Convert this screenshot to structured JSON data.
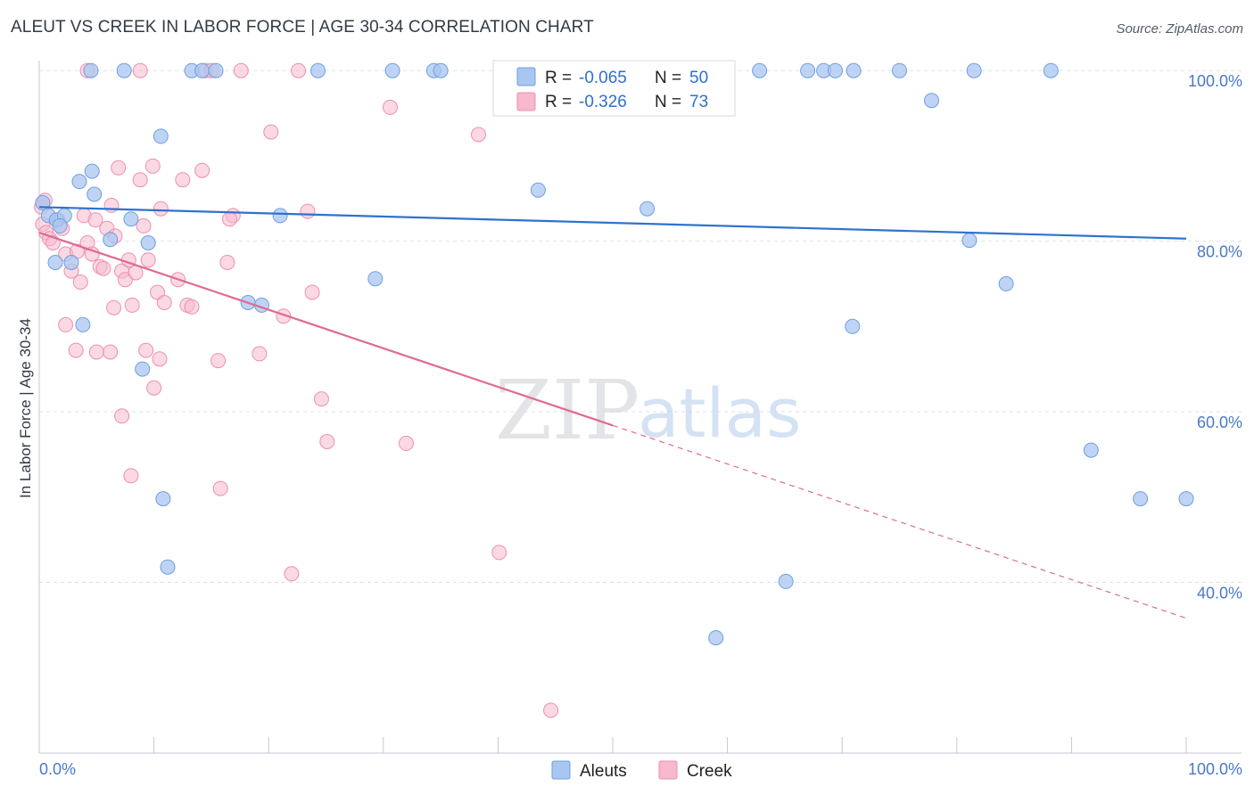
{
  "title": "ALEUT VS CREEK IN LABOR FORCE | AGE 30-34 CORRELATION CHART",
  "source": "Source: ZipAtlas.com",
  "watermark": {
    "zip": "ZIP",
    "atlas": "atlas"
  },
  "colors": {
    "aleut_fill": "#a9c6f0",
    "aleut_stroke": "#6f9fe0",
    "aleut_line": "#2f72cf",
    "creek_fill": "#f6b9cd",
    "creek_stroke": "#ee8fae",
    "creek_line": "#e06a93",
    "grid": "#dde1e8",
    "axis_label": "#4a78c8"
  },
  "legend": {
    "rows": [
      {
        "series": "aleuts",
        "r_label": "R =",
        "r_value": "-0.065",
        "n_label": "N =",
        "n_value": "50"
      },
      {
        "series": "creek",
        "r_label": "R =",
        "r_value": "-0.326",
        "n_label": "N =",
        "n_value": "73"
      }
    ]
  },
  "chart_data": {
    "type": "scatter",
    "title": "ALEUT VS CREEK IN LABOR FORCE | AGE 30-34 CORRELATION CHART",
    "xlabel": "",
    "ylabel": "In Labor Force | Age 30-34",
    "xlim": [
      0,
      100
    ],
    "ylim": [
      20,
      102
    ],
    "x_tick_labels": [
      "0.0%",
      "100.0%"
    ],
    "y_ticks": [
      40,
      60,
      80,
      100
    ],
    "y_tick_labels": [
      "40.0%",
      "60.0%",
      "80.0%",
      "100.0%"
    ],
    "legend_position": "bottom-center",
    "series": [
      {
        "name": "Aleuts",
        "r": -0.065,
        "n": 50,
        "trend": {
          "x": [
            0,
            100
          ],
          "y": [
            84.0,
            80.3
          ],
          "dashed_from": null
        },
        "points": [
          [
            0.3,
            84.5
          ],
          [
            0.8,
            83.0
          ],
          [
            1.5,
            82.5
          ],
          [
            2.2,
            83.0
          ],
          [
            1.8,
            81.8
          ],
          [
            3.5,
            87.0
          ],
          [
            4.6,
            88.2
          ],
          [
            4.8,
            85.5
          ],
          [
            6.2,
            80.2
          ],
          [
            8.0,
            82.6
          ],
          [
            9.5,
            79.8
          ],
          [
            10.6,
            92.3
          ],
          [
            1.4,
            77.5
          ],
          [
            2.8,
            77.5
          ],
          [
            3.8,
            70.2
          ],
          [
            9.0,
            65.0
          ],
          [
            10.8,
            49.8
          ],
          [
            11.2,
            41.8
          ],
          [
            18.2,
            72.8
          ],
          [
            19.4,
            72.5
          ],
          [
            21.0,
            83.0
          ],
          [
            29.3,
            75.6
          ],
          [
            43.5,
            86.0
          ],
          [
            53.0,
            83.8
          ],
          [
            70.9,
            70.0
          ],
          [
            59.0,
            33.5
          ],
          [
            65.1,
            40.1
          ],
          [
            81.1,
            80.1
          ],
          [
            84.3,
            75.0
          ],
          [
            77.8,
            96.5
          ],
          [
            91.7,
            55.5
          ],
          [
            96.0,
            49.8
          ],
          [
            100.0,
            49.8
          ],
          [
            4.5,
            100
          ],
          [
            7.4,
            100
          ],
          [
            13.3,
            100
          ],
          [
            14.2,
            100
          ],
          [
            15.4,
            100
          ],
          [
            24.3,
            100
          ],
          [
            30.8,
            100
          ],
          [
            34.4,
            100
          ],
          [
            35.0,
            100
          ],
          [
            62.8,
            100
          ],
          [
            67.0,
            100
          ],
          [
            68.4,
            100
          ],
          [
            69.4,
            100
          ],
          [
            71.0,
            100
          ],
          [
            75.0,
            100
          ],
          [
            81.5,
            100
          ],
          [
            88.2,
            100
          ]
        ]
      },
      {
        "name": "Creek",
        "r": -0.326,
        "n": 73,
        "trend": {
          "x": [
            0,
            100
          ],
          "y": [
            81.0,
            35.8
          ],
          "dashed_from": 50
        },
        "points": [
          [
            0.2,
            84.0
          ],
          [
            0.3,
            82.0
          ],
          [
            0.6,
            81.0
          ],
          [
            0.9,
            80.3
          ],
          [
            1.2,
            79.8
          ],
          [
            1.6,
            82.5
          ],
          [
            2.0,
            81.5
          ],
          [
            2.3,
            78.5
          ],
          [
            2.8,
            76.5
          ],
          [
            3.3,
            78.8
          ],
          [
            3.6,
            75.2
          ],
          [
            3.9,
            83.0
          ],
          [
            4.2,
            79.8
          ],
          [
            4.6,
            78.5
          ],
          [
            4.9,
            82.5
          ],
          [
            5.3,
            77.0
          ],
          [
            5.6,
            76.8
          ],
          [
            5.9,
            81.5
          ],
          [
            6.3,
            84.2
          ],
          [
            6.6,
            80.6
          ],
          [
            6.9,
            88.6
          ],
          [
            7.2,
            76.5
          ],
          [
            7.5,
            75.5
          ],
          [
            7.8,
            77.8
          ],
          [
            8.1,
            72.5
          ],
          [
            8.4,
            76.3
          ],
          [
            8.8,
            87.2
          ],
          [
            9.1,
            81.8
          ],
          [
            9.5,
            77.8
          ],
          [
            9.9,
            88.8
          ],
          [
            10.3,
            74.0
          ],
          [
            10.6,
            83.8
          ],
          [
            10.9,
            72.8
          ],
          [
            12.1,
            75.5
          ],
          [
            12.5,
            87.2
          ],
          [
            12.9,
            72.5
          ],
          [
            13.3,
            72.3
          ],
          [
            14.2,
            88.3
          ],
          [
            15.6,
            66.0
          ],
          [
            16.4,
            77.5
          ],
          [
            16.9,
            83.0
          ],
          [
            16.6,
            82.6
          ],
          [
            19.2,
            66.8
          ],
          [
            21.3,
            71.2
          ],
          [
            23.4,
            83.5
          ],
          [
            23.8,
            74.0
          ],
          [
            24.6,
            61.5
          ],
          [
            25.1,
            56.5
          ],
          [
            20.2,
            92.8
          ],
          [
            22.0,
            41.0
          ],
          [
            30.6,
            95.7
          ],
          [
            32.0,
            56.3
          ],
          [
            38.3,
            92.5
          ],
          [
            40.1,
            43.5
          ],
          [
            44.6,
            25.0
          ],
          [
            5.0,
            67.0
          ],
          [
            7.2,
            59.5
          ],
          [
            8.0,
            52.5
          ],
          [
            9.3,
            67.2
          ],
          [
            10.0,
            62.8
          ],
          [
            10.5,
            66.2
          ],
          [
            15.8,
            51.0
          ],
          [
            2.3,
            70.2
          ],
          [
            3.2,
            67.2
          ],
          [
            6.5,
            72.2
          ],
          [
            6.2,
            67.0
          ],
          [
            4.2,
            100
          ],
          [
            8.8,
            100
          ],
          [
            14.5,
            100
          ],
          [
            17.6,
            100
          ],
          [
            22.6,
            100
          ],
          [
            15.0,
            100
          ],
          [
            0.5,
            84.8
          ]
        ]
      }
    ]
  }
}
